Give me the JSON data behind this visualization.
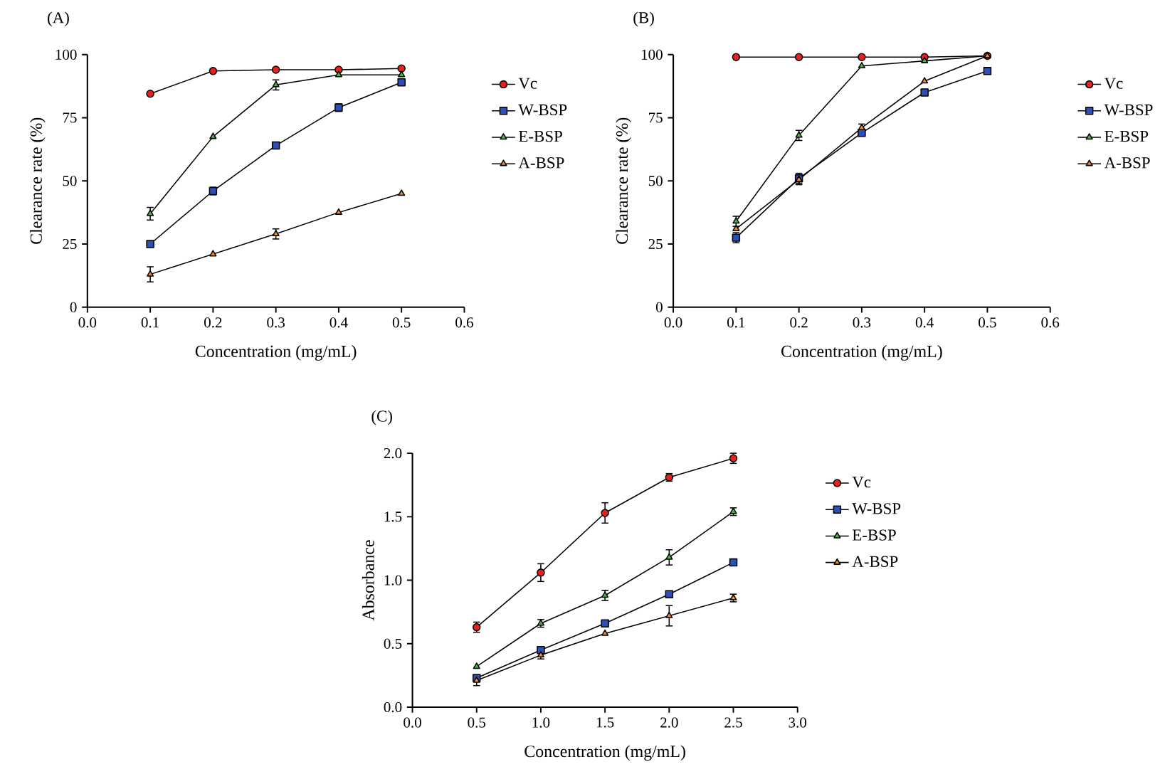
{
  "chart_data": [
    {
      "type": "line",
      "title": "(A)",
      "xlabel": "Concentration (mg/mL)",
      "ylabel": "Clearance rate (%)",
      "x": [
        0.1,
        0.2,
        0.3,
        0.4,
        0.5
      ],
      "xlim": [
        0,
        0.6
      ],
      "xticks": [
        {
          "value": 0,
          "label": "0.0"
        },
        0.1,
        0.2,
        0.3,
        0.4,
        0.5,
        0.6
      ],
      "ylim": [
        0,
        100
      ],
      "yticks": [
        0,
        25,
        50,
        75,
        100
      ],
      "legend": "right",
      "series": [
        {
          "name": "Vc",
          "color": "#e8211e",
          "marker": "circle",
          "values": [
            84.5,
            93.5,
            94,
            94,
            94.5
          ]
        },
        {
          "name": "W-BSP",
          "color": "#2e4fb5",
          "marker": "square",
          "values": [
            25,
            46,
            64,
            79,
            89
          ],
          "errors": [
            null,
            1.5,
            null,
            1.5,
            null
          ]
        },
        {
          "name": "E-BSP",
          "color": "#4ab54a",
          "marker": "triangle",
          "values": [
            37,
            67.5,
            88,
            92,
            92
          ],
          "errors": [
            2.5,
            null,
            2,
            null,
            null
          ]
        },
        {
          "name": "A-BSP",
          "color": "#f58a1f",
          "marker": "triangle",
          "values": [
            13,
            21,
            29,
            37.5,
            45
          ],
          "errors": [
            3,
            null,
            2,
            null,
            null
          ]
        }
      ]
    },
    {
      "type": "line",
      "title": "(B)",
      "xlabel": "Concentration (mg/mL)",
      "ylabel": "Clearance rate (%)",
      "x": [
        0.1,
        0.2,
        0.3,
        0.4,
        0.5
      ],
      "xlim": [
        0,
        0.6
      ],
      "xticks": [
        {
          "value": 0,
          "label": "0.0"
        },
        0.1,
        0.2,
        0.3,
        0.4,
        0.5,
        0.6
      ],
      "ylim": [
        0,
        100
      ],
      "yticks": [
        0,
        25,
        50,
        75,
        100
      ],
      "legend": "right",
      "series": [
        {
          "name": "Vc",
          "color": "#e8211e",
          "marker": "circle",
          "values": [
            99,
            99,
            99,
            99,
            99.5
          ]
        },
        {
          "name": "W-BSP",
          "color": "#2e4fb5",
          "marker": "square",
          "values": [
            27.5,
            51,
            69,
            85,
            93.5
          ],
          "errors": [
            2,
            2,
            null,
            null,
            null
          ]
        },
        {
          "name": "E-BSP",
          "color": "#4ab54a",
          "marker": "triangle",
          "values": [
            34,
            68,
            95.5,
            97.5,
            99.5
          ],
          "errors": [
            2,
            2,
            null,
            null,
            null
          ]
        },
        {
          "name": "A-BSP",
          "color": "#f58a1f",
          "marker": "triangle",
          "values": [
            31,
            50.5,
            71,
            89.5,
            99.5
          ],
          "errors": [
            null,
            2,
            1.5,
            null,
            null
          ]
        }
      ]
    },
    {
      "type": "line",
      "title": "(C)",
      "xlabel": "Concentration (mg/mL)",
      "ylabel": "Absorbance",
      "x": [
        0.5,
        1.0,
        1.5,
        2.0,
        2.5
      ],
      "xlim": [
        0,
        3
      ],
      "xticks": [
        {
          "value": 0,
          "label": "0.0"
        },
        0.5,
        {
          "value": 1,
          "label": "1.0"
        },
        1.5,
        {
          "value": 2,
          "label": "2.0"
        },
        2.5,
        {
          "value": 3,
          "label": "3.0"
        }
      ],
      "ylim": [
        0,
        2
      ],
      "yticks": [
        {
          "value": 0,
          "label": "0.0"
        },
        0.5,
        {
          "value": 1,
          "label": "1.0"
        },
        1.5,
        {
          "value": 2,
          "label": "2.0"
        }
      ],
      "legend": "right",
      "series": [
        {
          "name": "Vc",
          "color": "#e8211e",
          "marker": "circle",
          "values": [
            0.63,
            1.06,
            1.53,
            1.81,
            1.96
          ],
          "errors": [
            0.04,
            0.07,
            0.08,
            0.03,
            0.04
          ]
        },
        {
          "name": "W-BSP",
          "color": "#2e4fb5",
          "marker": "square",
          "values": [
            0.23,
            0.45,
            0.66,
            0.89,
            1.14
          ]
        },
        {
          "name": "E-BSP",
          "color": "#4ab54a",
          "marker": "triangle",
          "values": [
            0.32,
            0.66,
            0.88,
            1.18,
            1.54
          ],
          "errors": [
            null,
            0.03,
            0.04,
            0.06,
            0.03
          ]
        },
        {
          "name": "A-BSP",
          "color": "#f58a1f",
          "marker": "triangle",
          "values": [
            0.21,
            0.41,
            0.58,
            0.72,
            0.86
          ],
          "errors": [
            0.04,
            0.03,
            null,
            0.08,
            0.03
          ]
        }
      ]
    }
  ]
}
